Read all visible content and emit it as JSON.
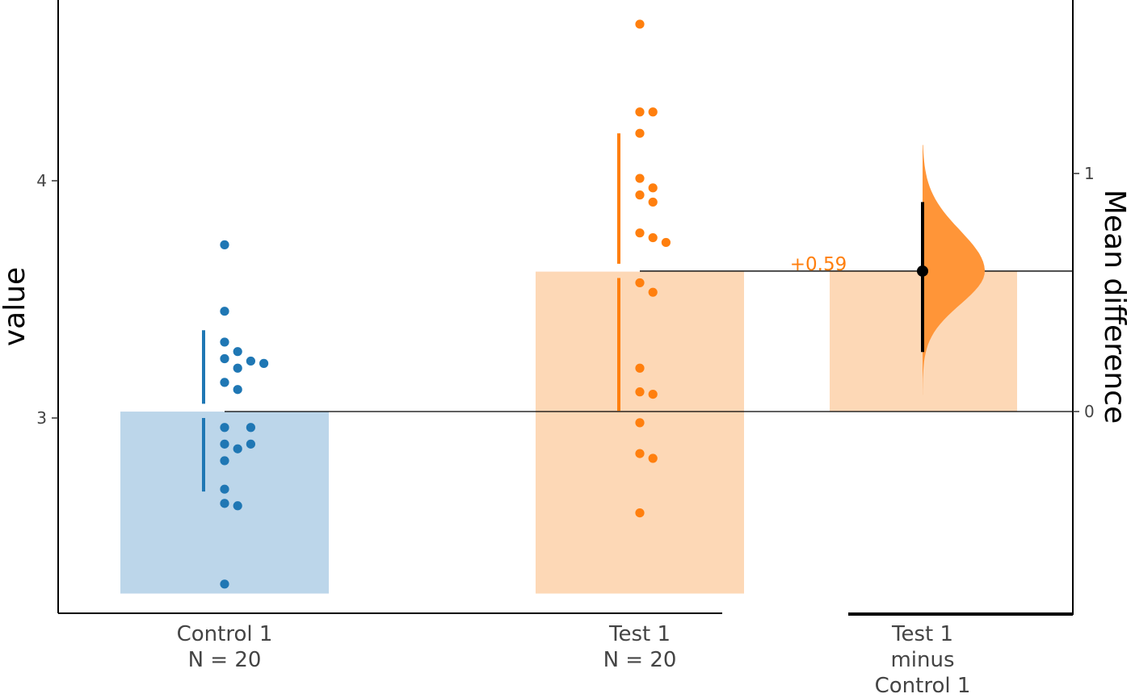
{
  "colors": {
    "control": "#1f77b4",
    "control_bar": "#bcd6ea",
    "test": "#ff7f0e",
    "test_bar": "#fdd8b6",
    "test_violin": "#ff9538"
  },
  "chart_data": {
    "type": "bar",
    "left_axis": {
      "ylabel": "value",
      "ticks": [
        3,
        4
      ],
      "ylim": [
        2.14,
        5.23
      ]
    },
    "right_axis": {
      "ylabel": "Mean difference",
      "ticks": [
        0,
        1
      ],
      "ylim": [
        -0.85,
        1.72
      ]
    },
    "groups": [
      {
        "label_line1": "Control 1",
        "label_line2": "N = 20",
        "mean": 3.027,
        "bar_bottom": 2.26,
        "sd_upper": [
          3.06,
          3.37
        ],
        "sd_lower": [
          2.69,
          3.0
        ],
        "points": [
          3.73,
          3.45,
          3.32,
          3.28,
          3.25,
          3.24,
          3.23,
          3.21,
          3.15,
          3.12,
          2.96,
          2.96,
          2.89,
          2.89,
          2.87,
          2.82,
          2.7,
          2.63,
          2.64,
          2.3
        ]
      },
      {
        "label_line1": "Test 1",
        "label_line2": "N = 20",
        "mean": 3.617,
        "bar_bottom": 2.26,
        "sd_upper": [
          3.65,
          4.2
        ],
        "sd_lower": [
          3.03,
          3.59
        ],
        "points": [
          4.66,
          4.29,
          4.29,
          4.2,
          4.01,
          3.97,
          3.94,
          3.91,
          3.78,
          3.76,
          3.74,
          3.57,
          3.53,
          3.21,
          3.11,
          3.1,
          2.98,
          2.85,
          2.83,
          2.6
        ]
      }
    ],
    "delta": {
      "label_line1": "Test 1",
      "label_line2": "minus",
      "label_line3": "Control 1",
      "value": 0.59,
      "value_label": "+0.59",
      "ci": [
        0.25,
        0.88
      ],
      "distribution_range": [
        0.07,
        1.12
      ],
      "distribution_peak": 0.59
    }
  }
}
